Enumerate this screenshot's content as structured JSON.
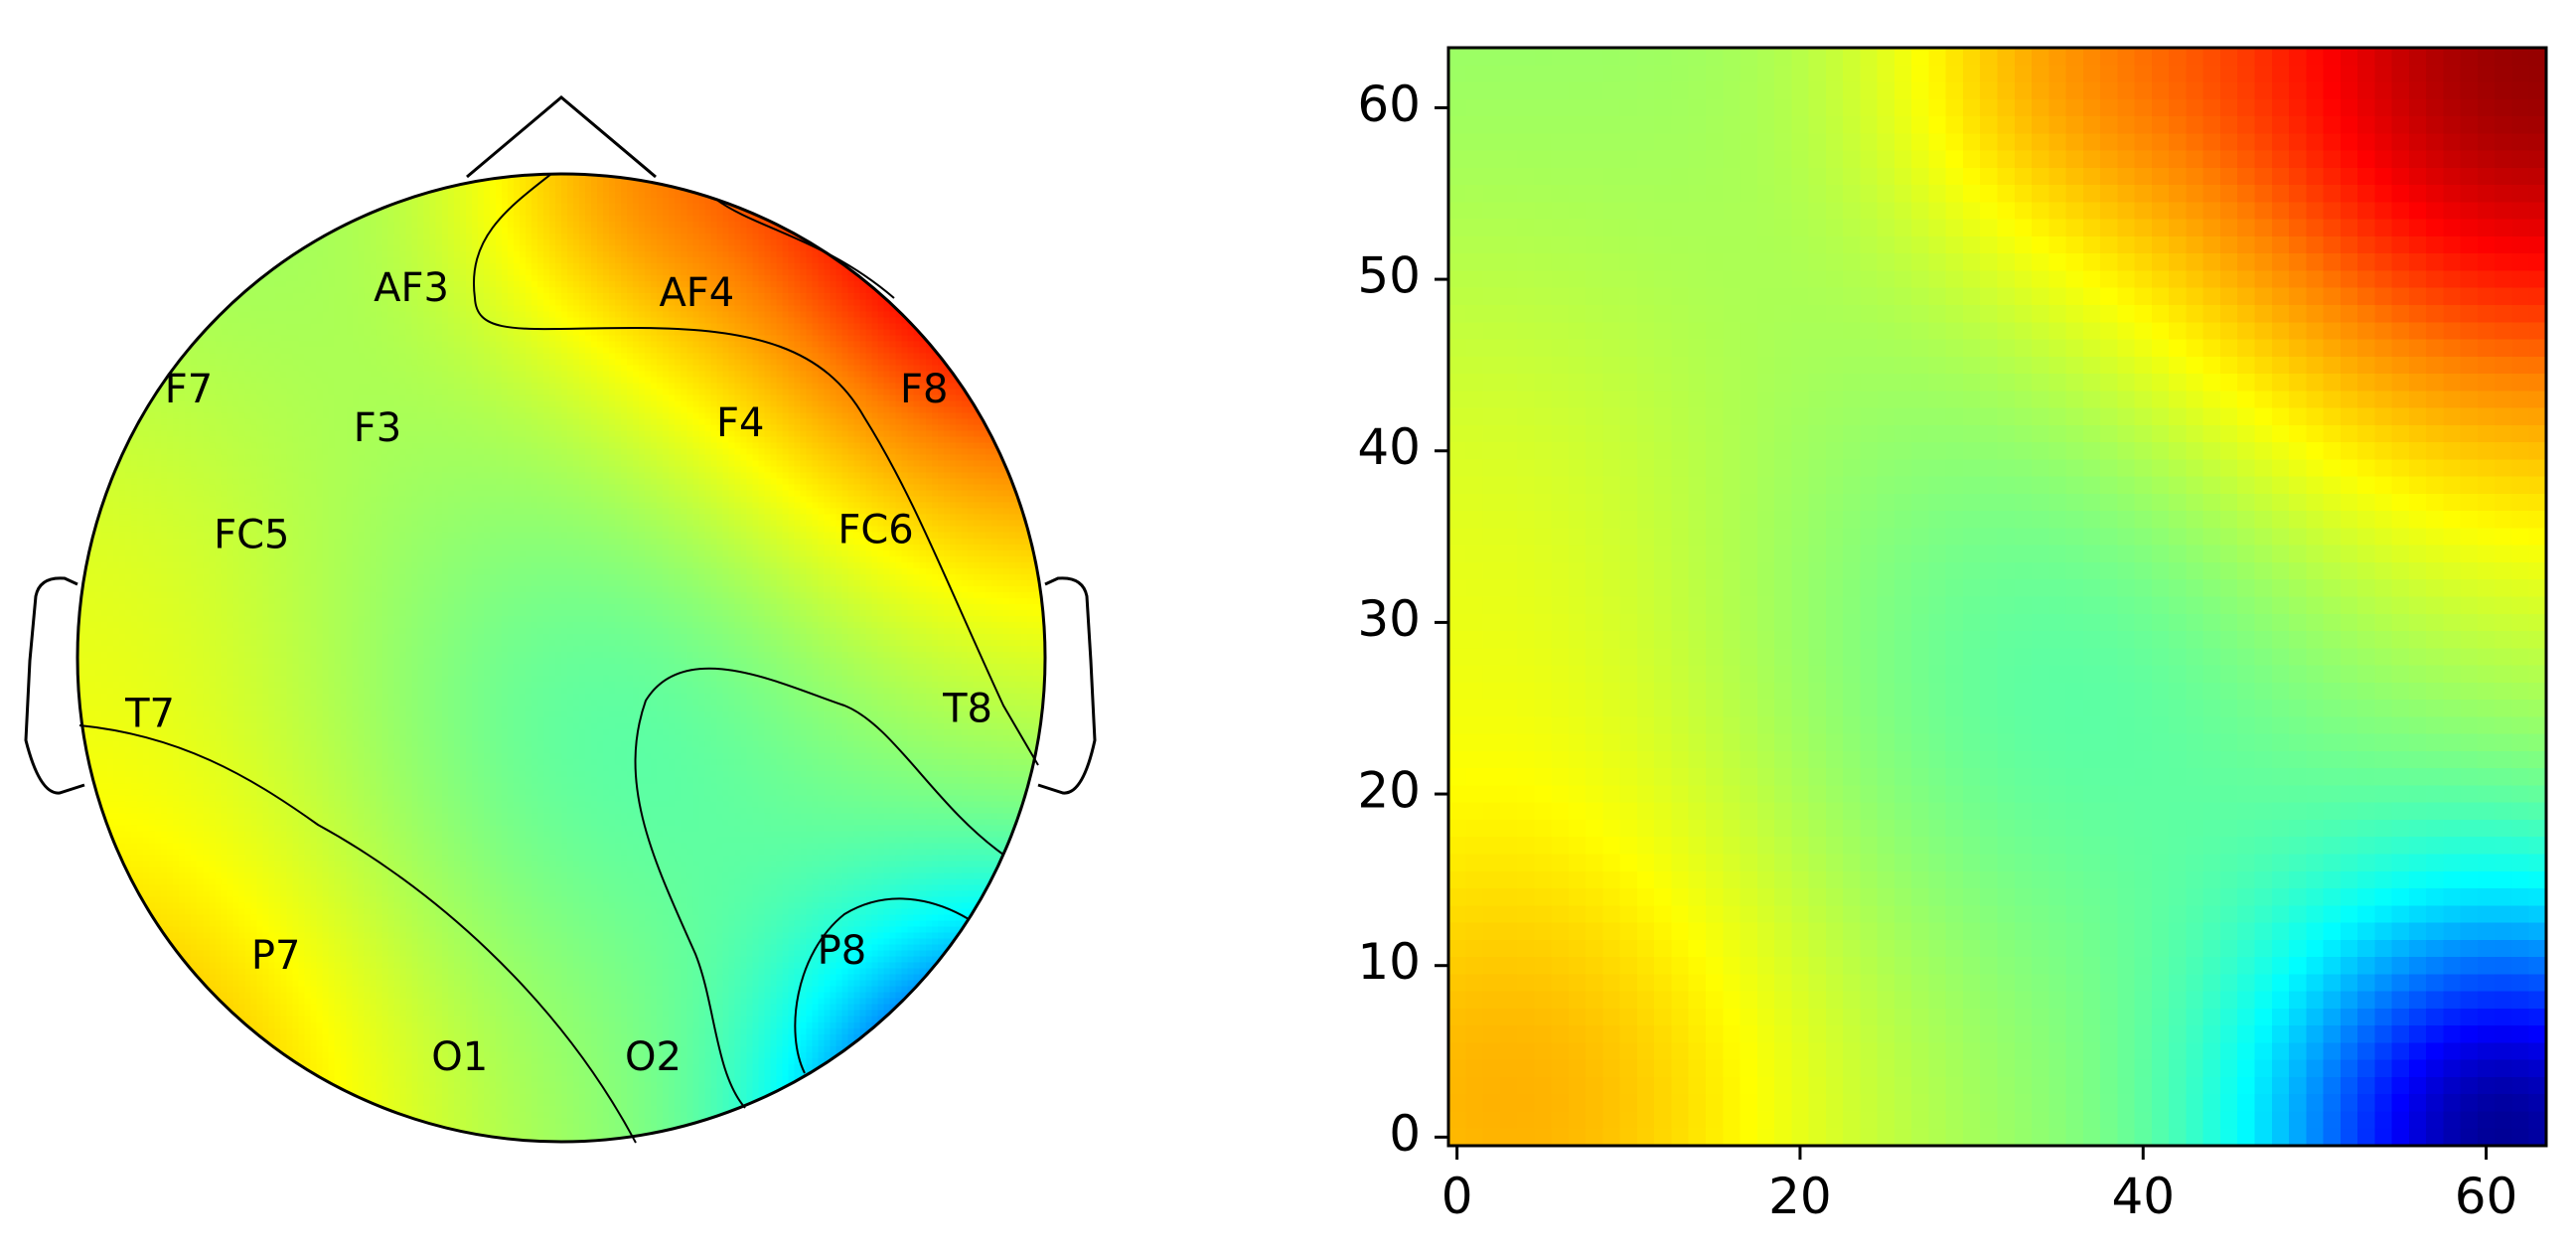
{
  "colormap": "jet",
  "colormap_stops": [
    "#00007f",
    "#0000ff",
    "#00ffff",
    "#80ff80",
    "#ffff00",
    "#ff7f00",
    "#ff0000",
    "#7f0000"
  ],
  "chart_data": [
    {
      "type": "heatmap",
      "subtype": "eeg-topomap",
      "title": "",
      "electrodes": [
        {
          "name": "AF3",
          "x": -0.31,
          "y": 0.76
        },
        {
          "name": "AF4",
          "x": 0.28,
          "y": 0.75
        },
        {
          "name": "F7",
          "x": -0.77,
          "y": 0.55
        },
        {
          "name": "F3",
          "x": -0.38,
          "y": 0.47
        },
        {
          "name": "F4",
          "x": 0.37,
          "y": 0.48
        },
        {
          "name": "F8",
          "x": 0.75,
          "y": 0.55
        },
        {
          "name": "FC5",
          "x": -0.64,
          "y": 0.25
        },
        {
          "name": "FC6",
          "x": 0.65,
          "y": 0.26
        },
        {
          "name": "T7",
          "x": -0.85,
          "y": -0.12
        },
        {
          "name": "T8",
          "x": 0.84,
          "y": -0.11
        },
        {
          "name": "P7",
          "x": -0.59,
          "y": -0.62
        },
        {
          "name": "P8",
          "x": 0.58,
          "y": -0.61
        },
        {
          "name": "O1",
          "x": -0.21,
          "y": -0.83
        },
        {
          "name": "O2",
          "x": 0.19,
          "y": -0.83
        }
      ],
      "contour_lines": true,
      "head_outline": true
    },
    {
      "type": "heatmap",
      "title": "",
      "xlabel": "",
      "ylabel": "",
      "grid_size": 64,
      "xlim": [
        -0.5,
        63.5
      ],
      "ylim": [
        -0.5,
        63.5
      ],
      "origin": "lower",
      "x_ticks": [
        "0",
        "20",
        "40",
        "60"
      ],
      "y_ticks": [
        "0",
        "10",
        "20",
        "30",
        "40",
        "50",
        "60"
      ],
      "grid": false,
      "value_range": [
        0,
        1
      ]
    }
  ]
}
